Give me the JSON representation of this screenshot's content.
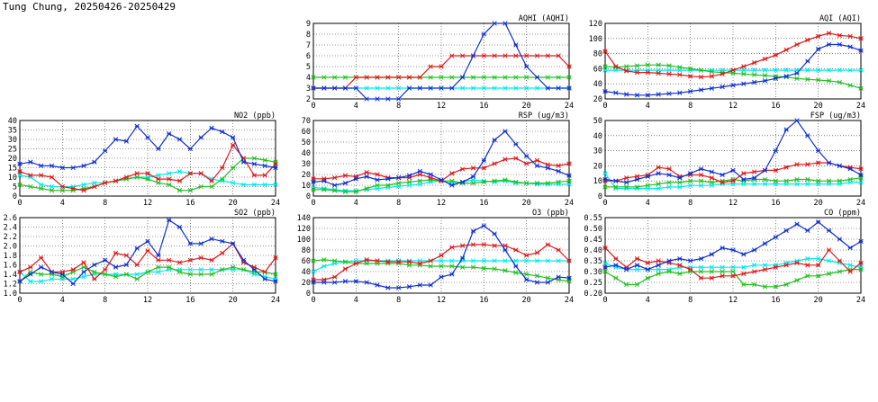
{
  "page": {
    "title": "Tung Chung, 20250426-20250429"
  },
  "colors": {
    "blue": "#1030d0",
    "red": "#e01818",
    "green": "#20c020",
    "cyan": "#00e8f0"
  },
  "chart_data": [
    {
      "type": "line",
      "title": "AQHI (AQHI)",
      "xlim": [
        0,
        24
      ],
      "ylim": [
        2,
        9
      ],
      "xticks": [
        0,
        4,
        8,
        12,
        16,
        20,
        24
      ],
      "yticks": [
        2,
        3,
        4,
        5,
        6,
        7,
        8,
        9
      ],
      "series": [
        {
          "color": "blue",
          "values": [
            3,
            3,
            3,
            3,
            3,
            2,
            2,
            2,
            2,
            3,
            3,
            3,
            3,
            3,
            4,
            6,
            8,
            9,
            9,
            7,
            5,
            4,
            3,
            3,
            3
          ]
        },
        {
          "color": "red",
          "values": [
            3,
            3,
            3,
            3,
            4,
            4,
            4,
            4,
            4,
            4,
            4,
            5,
            5,
            6,
            6,
            6,
            6,
            6,
            6,
            6,
            6,
            6,
            6,
            6,
            5
          ]
        },
        {
          "color": "green",
          "values": [
            4,
            4,
            4,
            4,
            4,
            4,
            4,
            4,
            4,
            4,
            4,
            4,
            4,
            4,
            4,
            4,
            4,
            4,
            4,
            4,
            4,
            4,
            4,
            4,
            4
          ]
        },
        {
          "color": "cyan",
          "values": [
            3,
            3,
            3,
            3,
            3,
            3,
            3,
            3,
            3,
            3,
            3,
            3,
            3,
            3,
            3,
            3,
            3,
            3,
            3,
            3,
            3,
            3,
            3,
            3,
            3
          ]
        }
      ]
    },
    {
      "type": "line",
      "title": "AQI (AQI)",
      "xlim": [
        0,
        24
      ],
      "ylim": [
        20,
        120
      ],
      "xticks": [
        0,
        4,
        8,
        12,
        16,
        20,
        24
      ],
      "yticks": [
        20,
        40,
        60,
        80,
        100,
        120
      ],
      "series": [
        {
          "color": "blue",
          "values": [
            30,
            28,
            26,
            25,
            25,
            26,
            27,
            28,
            30,
            32,
            34,
            36,
            38,
            40,
            42,
            44,
            47,
            50,
            54,
            70,
            86,
            92,
            92,
            89,
            84
          ]
        },
        {
          "color": "red",
          "values": [
            83,
            63,
            57,
            55,
            55,
            54,
            53,
            52,
            50,
            49,
            50,
            53,
            58,
            63,
            68,
            73,
            78,
            85,
            92,
            98,
            103,
            107,
            104,
            103,
            100
          ]
        },
        {
          "color": "green",
          "values": [
            63,
            62,
            63,
            64,
            65,
            65,
            64,
            62,
            60,
            58,
            56,
            55,
            54,
            53,
            52,
            51,
            50,
            49,
            47,
            46,
            45,
            44,
            42,
            38,
            34
          ]
        },
        {
          "color": "cyan",
          "values": [
            58,
            58,
            58,
            58,
            58,
            58,
            58,
            58,
            58,
            58,
            58,
            58,
            58,
            58,
            58,
            58,
            58,
            58,
            58,
            58,
            58,
            58,
            58,
            58,
            58
          ]
        }
      ]
    },
    {
      "type": "line",
      "title": "NO2 (ppb)",
      "xlim": [
        0,
        24
      ],
      "ylim": [
        0,
        40
      ],
      "xticks": [
        0,
        4,
        8,
        12,
        16,
        20,
        24
      ],
      "yticks": [
        0,
        5,
        10,
        15,
        20,
        25,
        30,
        35,
        40
      ],
      "series": [
        {
          "color": "blue",
          "values": [
            17,
            18,
            16,
            16,
            15,
            15,
            16,
            18,
            24,
            30,
            29,
            37,
            31,
            25,
            33,
            30,
            25,
            31,
            36,
            34,
            31,
            18,
            17,
            16,
            15
          ]
        },
        {
          "color": "red",
          "values": [
            13,
            11,
            11,
            10,
            5,
            4,
            3,
            5,
            7,
            8,
            10,
            12,
            12,
            9,
            9,
            8,
            12,
            12,
            8,
            15,
            27,
            20,
            11,
            11,
            17
          ]
        },
        {
          "color": "green",
          "values": [
            6,
            5,
            4,
            3,
            3,
            3,
            4,
            5,
            7,
            8,
            9,
            10,
            9,
            7,
            6,
            3,
            3,
            5,
            5,
            9,
            15,
            20,
            20,
            19,
            18
          ]
        },
        {
          "color": "cyan",
          "values": [
            11,
            10,
            6,
            5,
            5,
            5,
            6,
            7,
            7,
            8,
            9,
            10,
            10,
            11,
            12,
            13,
            12,
            12,
            9,
            8,
            7,
            6,
            6,
            6,
            6
          ]
        }
      ]
    },
    {
      "type": "line",
      "title": "RSP (ug/m3)",
      "xlim": [
        0,
        24
      ],
      "ylim": [
        0,
        70
      ],
      "xticks": [
        0,
        4,
        8,
        12,
        16,
        20,
        24
      ],
      "yticks": [
        0,
        10,
        20,
        30,
        40,
        50,
        60,
        70
      ],
      "series": [
        {
          "color": "blue",
          "values": [
            13,
            14,
            10,
            12,
            16,
            18,
            15,
            16,
            17,
            19,
            23,
            20,
            15,
            10,
            13,
            18,
            33,
            52,
            60,
            48,
            37,
            28,
            26,
            23,
            19
          ]
        },
        {
          "color": "red",
          "values": [
            16,
            16,
            17,
            19,
            18,
            22,
            20,
            17,
            17,
            17,
            20,
            17,
            14,
            21,
            25,
            26,
            26,
            30,
            34,
            35,
            30,
            33,
            29,
            28,
            30
          ]
        },
        {
          "color": "green",
          "values": [
            6,
            6,
            5,
            4,
            4,
            7,
            10,
            10,
            12,
            13,
            14,
            15,
            14,
            14,
            12,
            12,
            13,
            14,
            15,
            13,
            12,
            12,
            12,
            13,
            14
          ]
        },
        {
          "color": "cyan",
          "values": [
            8,
            7,
            6,
            5,
            5,
            6,
            7,
            8,
            9,
            10,
            11,
            13,
            14,
            12,
            13,
            15,
            14,
            13,
            14,
            12,
            12,
            11,
            11,
            11,
            11
          ]
        }
      ]
    },
    {
      "type": "line",
      "title": "FSP (ug/m3)",
      "xlim": [
        0,
        24
      ],
      "ylim": [
        0,
        50
      ],
      "xticks": [
        0,
        4,
        8,
        12,
        16,
        20,
        24
      ],
      "yticks": [
        0,
        10,
        20,
        30,
        40,
        50
      ],
      "series": [
        {
          "color": "blue",
          "values": [
            11,
            10,
            9,
            11,
            13,
            15,
            14,
            12,
            15,
            18,
            16,
            14,
            17,
            11,
            12,
            17,
            30,
            44,
            50,
            40,
            30,
            22,
            20,
            18,
            14
          ]
        },
        {
          "color": "red",
          "values": [
            10,
            10,
            12,
            13,
            14,
            19,
            18,
            13,
            14,
            14,
            12,
            9,
            10,
            15,
            16,
            17,
            17,
            19,
            21,
            21,
            22,
            22,
            20,
            19,
            18
          ]
        },
        {
          "color": "green",
          "values": [
            6,
            6,
            6,
            6,
            7,
            8,
            9,
            9,
            10,
            10,
            9,
            10,
            11,
            10,
            11,
            11,
            10,
            10,
            11,
            11,
            10,
            10,
            10,
            11,
            12
          ]
        },
        {
          "color": "cyan",
          "values": [
            15,
            5,
            5,
            5,
            5,
            5,
            6,
            6,
            7,
            7,
            7,
            8,
            8,
            8,
            8,
            8,
            8,
            8,
            8,
            8,
            8,
            8,
            8,
            9,
            9
          ]
        }
      ]
    },
    {
      "type": "line",
      "title": "SO2 (ppb)",
      "xlim": [
        0,
        24
      ],
      "ylim": [
        1.0,
        2.6
      ],
      "xticks": [
        0,
        4,
        8,
        12,
        16,
        20,
        24
      ],
      "yticks": [
        1.0,
        1.2,
        1.4,
        1.6,
        1.8,
        2.0,
        2.2,
        2.4,
        2.6
      ],
      "series": [
        {
          "color": "blue",
          "values": [
            1.25,
            1.4,
            1.55,
            1.45,
            1.4,
            1.2,
            1.45,
            1.6,
            1.7,
            1.55,
            1.6,
            1.95,
            2.1,
            1.8,
            2.55,
            2.4,
            2.05,
            2.05,
            2.15,
            2.1,
            2.05,
            1.7,
            1.5,
            1.3,
            1.25
          ]
        },
        {
          "color": "red",
          "values": [
            1.45,
            1.55,
            1.75,
            1.45,
            1.45,
            1.5,
            1.65,
            1.3,
            1.5,
            1.85,
            1.8,
            1.6,
            1.9,
            1.7,
            1.7,
            1.65,
            1.7,
            1.75,
            1.7,
            1.85,
            2.05,
            1.65,
            1.55,
            1.45,
            1.75
          ]
        },
        {
          "color": "green",
          "values": [
            1.25,
            1.45,
            1.4,
            1.4,
            1.35,
            1.45,
            1.55,
            1.45,
            1.4,
            1.35,
            1.4,
            1.3,
            1.45,
            1.55,
            1.55,
            1.45,
            1.4,
            1.4,
            1.4,
            1.5,
            1.55,
            1.5,
            1.45,
            1.45,
            1.4
          ]
        },
        {
          "color": "cyan",
          "values": [
            1.45,
            1.25,
            1.25,
            1.3,
            1.3,
            1.3,
            1.35,
            1.4,
            1.4,
            1.4,
            1.4,
            1.4,
            1.45,
            1.45,
            1.5,
            1.5,
            1.5,
            1.5,
            1.5,
            1.5,
            1.5,
            1.5,
            1.4,
            1.35,
            1.3
          ]
        }
      ]
    },
    {
      "type": "line",
      "title": "O3 (ppb)",
      "xlim": [
        0,
        24
      ],
      "ylim": [
        0,
        140
      ],
      "xticks": [
        0,
        4,
        8,
        12,
        16,
        20,
        24
      ],
      "yticks": [
        0,
        20,
        40,
        60,
        80,
        100,
        120,
        140
      ],
      "series": [
        {
          "color": "blue",
          "values": [
            20,
            20,
            20,
            22,
            22,
            20,
            15,
            10,
            10,
            12,
            15,
            15,
            30,
            35,
            65,
            115,
            125,
            110,
            80,
            50,
            25,
            20,
            20,
            30,
            28
          ]
        },
        {
          "color": "red",
          "values": [
            25,
            25,
            30,
            45,
            55,
            62,
            60,
            58,
            58,
            58,
            55,
            60,
            70,
            85,
            88,
            90,
            90,
            88,
            88,
            80,
            70,
            75,
            90,
            80,
            60
          ]
        },
        {
          "color": "green",
          "values": [
            60,
            62,
            60,
            58,
            55,
            55,
            55,
            55,
            55,
            52,
            52,
            50,
            50,
            50,
            48,
            48,
            46,
            45,
            42,
            38,
            35,
            32,
            28,
            25,
            22
          ]
        },
        {
          "color": "cyan",
          "values": [
            40,
            50,
            55,
            58,
            60,
            60,
            60,
            60,
            60,
            60,
            60,
            60,
            60,
            60,
            60,
            60,
            60,
            60,
            60,
            60,
            60,
            60,
            60,
            60,
            60
          ]
        }
      ]
    },
    {
      "type": "line",
      "title": "CO (ppm)",
      "xlim": [
        0,
        24
      ],
      "ylim": [
        0.2,
        0.55
      ],
      "xticks": [
        0,
        4,
        8,
        12,
        16,
        20,
        24
      ],
      "yticks": [
        0.2,
        0.25,
        0.3,
        0.35,
        0.4,
        0.45,
        0.5,
        0.55
      ],
      "series": [
        {
          "color": "blue",
          "values": [
            0.32,
            0.33,
            0.31,
            0.33,
            0.31,
            0.33,
            0.35,
            0.36,
            0.35,
            0.36,
            0.38,
            0.41,
            0.4,
            0.38,
            0.4,
            0.43,
            0.46,
            0.49,
            0.52,
            0.49,
            0.53,
            0.49,
            0.45,
            0.41,
            0.44
          ]
        },
        {
          "color": "red",
          "values": [
            0.41,
            0.36,
            0.32,
            0.36,
            0.34,
            0.35,
            0.34,
            0.33,
            0.31,
            0.27,
            0.27,
            0.28,
            0.28,
            0.29,
            0.3,
            0.31,
            0.32,
            0.33,
            0.34,
            0.33,
            0.33,
            0.4,
            0.35,
            0.3,
            0.34
          ]
        },
        {
          "color": "green",
          "values": [
            0.3,
            0.27,
            0.24,
            0.24,
            0.27,
            0.29,
            0.3,
            0.29,
            0.3,
            0.3,
            0.3,
            0.3,
            0.3,
            0.24,
            0.24,
            0.23,
            0.23,
            0.24,
            0.26,
            0.28,
            0.28,
            0.29,
            0.3,
            0.31,
            0.31
          ]
        },
        {
          "color": "cyan",
          "values": [
            0.34,
            0.32,
            0.31,
            0.31,
            0.31,
            0.31,
            0.31,
            0.32,
            0.32,
            0.32,
            0.32,
            0.32,
            0.32,
            0.32,
            0.33,
            0.33,
            0.33,
            0.34,
            0.35,
            0.36,
            0.36,
            0.35,
            0.34,
            0.33,
            0.32
          ]
        }
      ]
    }
  ]
}
